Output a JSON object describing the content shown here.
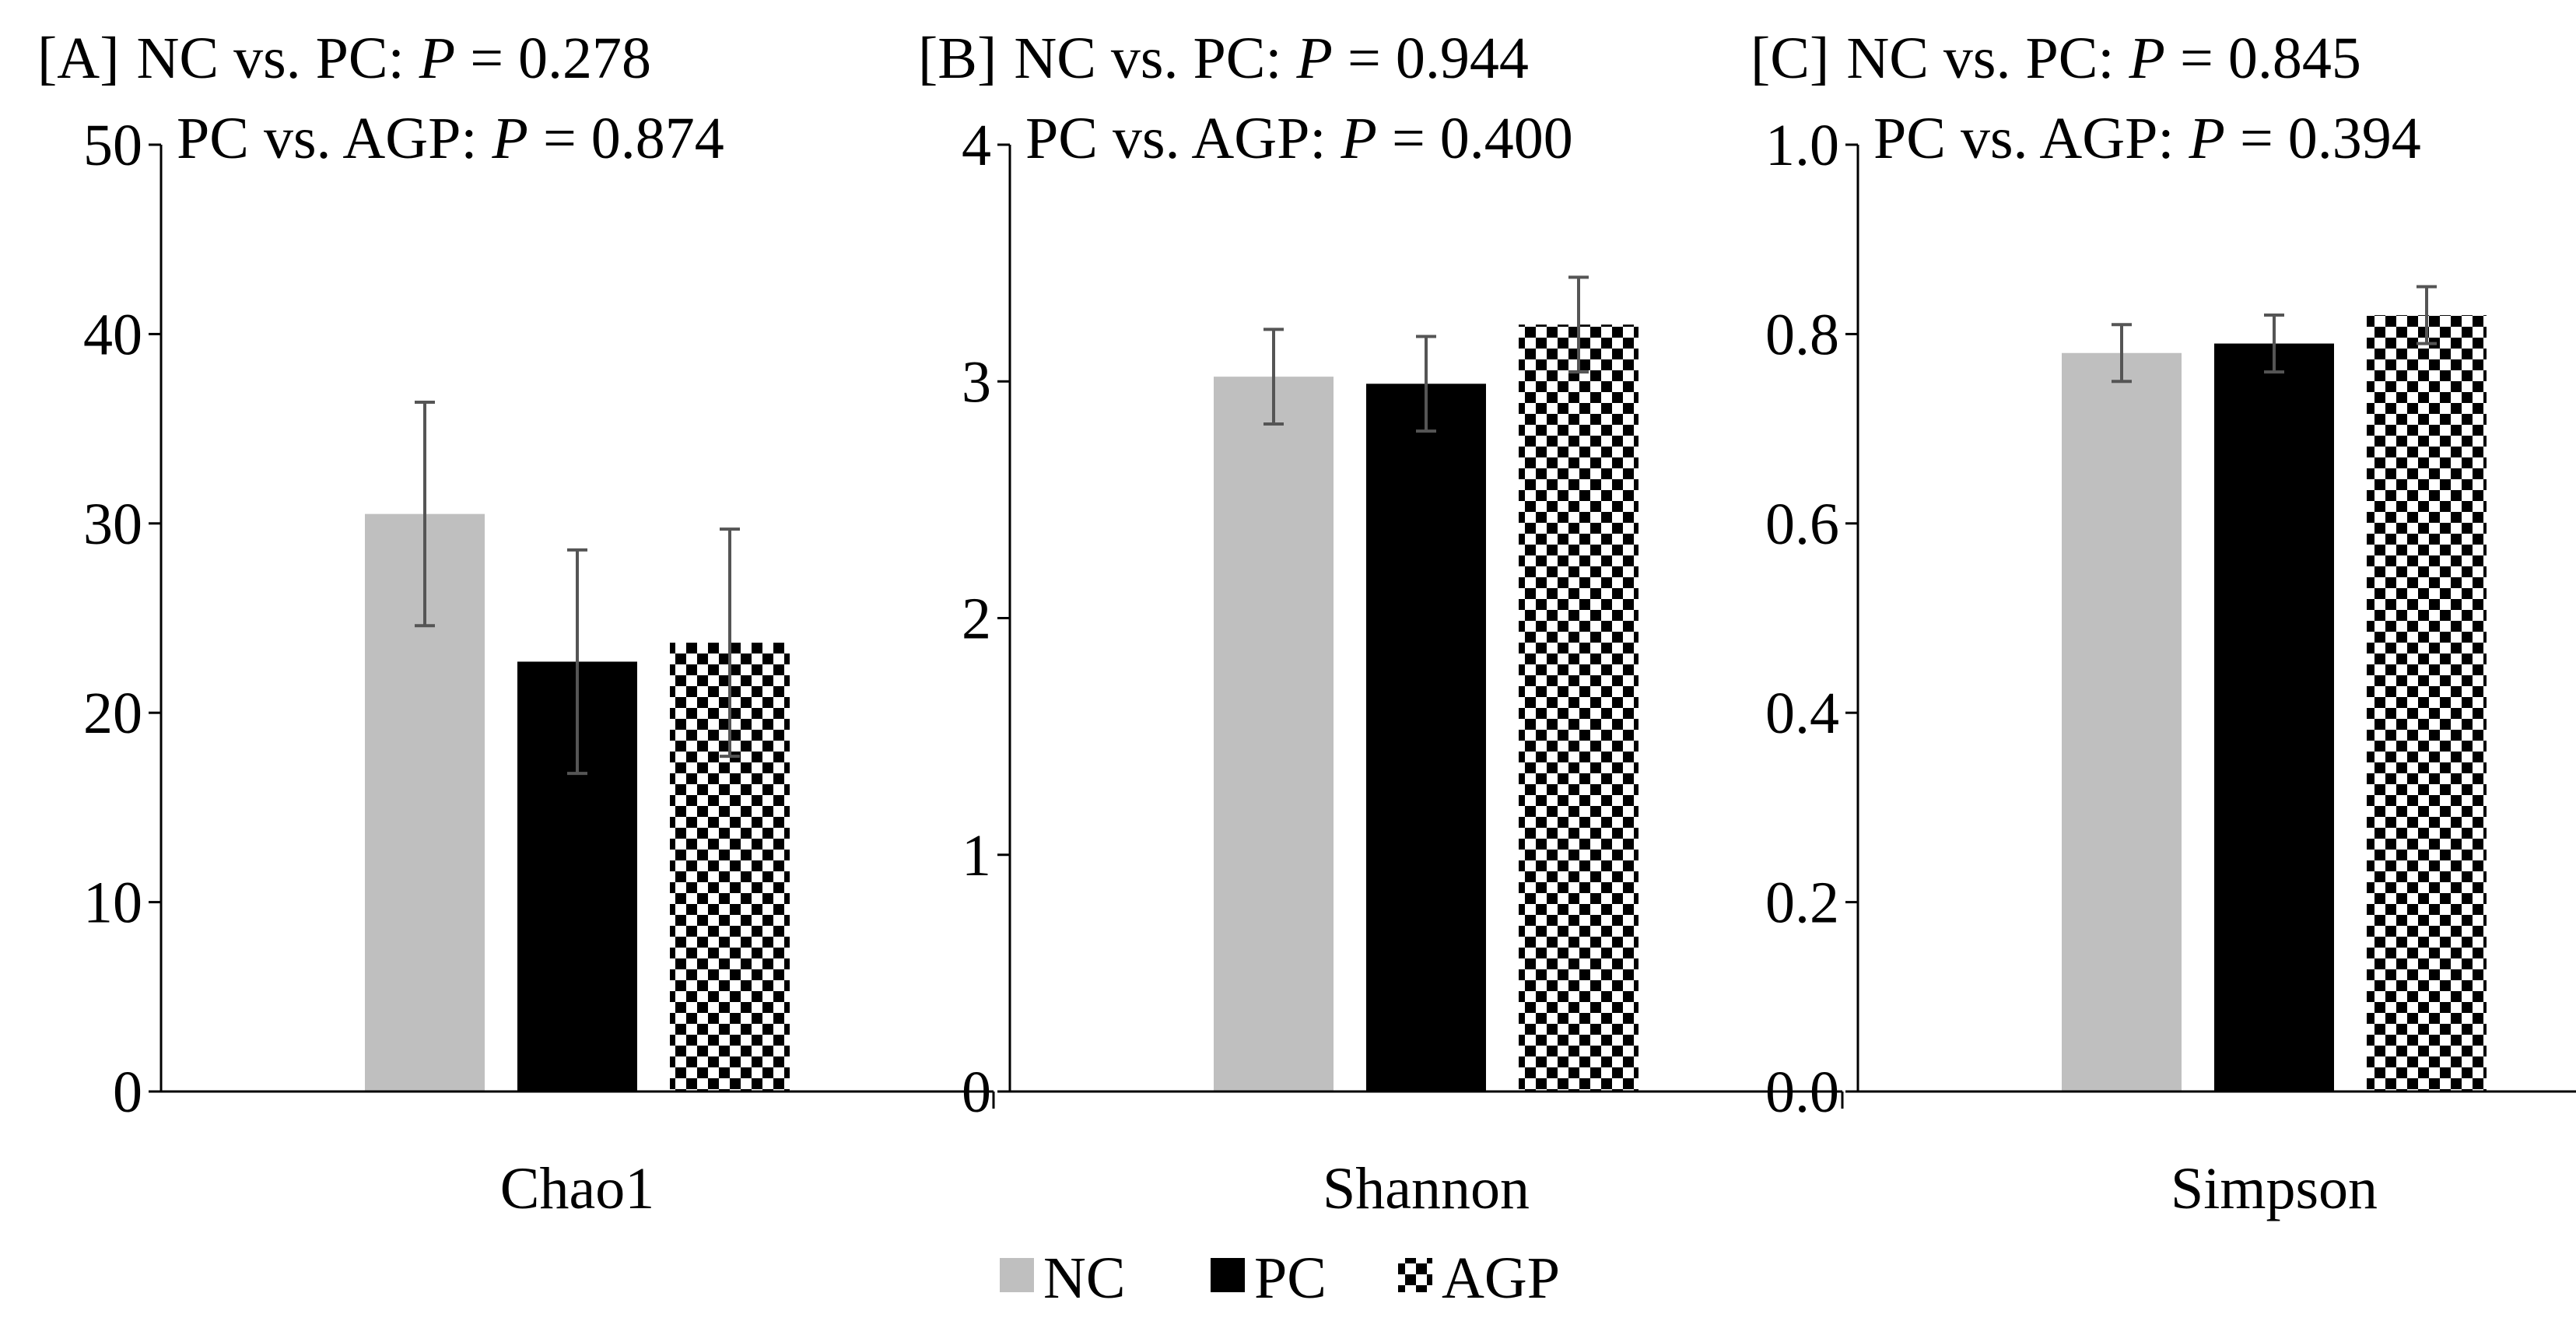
{
  "figure": {
    "legend": [
      {
        "name": "NC",
        "pattern": "solid",
        "color": "#bfbfbf"
      },
      {
        "name": "PC",
        "pattern": "solid",
        "color": "#000000"
      },
      {
        "name": "AGP",
        "pattern": "checker",
        "color": "#000000"
      }
    ]
  },
  "chart_data": [
    {
      "type": "bar",
      "panel_label": "[A]",
      "annotations": [
        {
          "comparison": "NC vs. PC: ",
          "p_symbol": "P",
          "p_text": " = 0.278"
        },
        {
          "comparison": "PC vs. AGP: ",
          "p_symbol": "P",
          "p_text": " = 0.874"
        }
      ],
      "categories": [
        "Chao1"
      ],
      "series": [
        {
          "name": "NC",
          "values": [
            30.5
          ],
          "error": [
            5.9
          ]
        },
        {
          "name": "PC",
          "values": [
            22.7
          ],
          "error": [
            5.9
          ]
        },
        {
          "name": "AGP",
          "values": [
            23.7
          ],
          "error": [
            6.0
          ]
        }
      ],
      "xlabel": "Chao1",
      "ylabel": "",
      "ylim": [
        0,
        50
      ],
      "yticks": [
        0,
        10,
        20,
        30,
        40,
        50
      ],
      "ytick_labels": [
        "0",
        "10",
        "20",
        "30",
        "40",
        "50"
      ]
    },
    {
      "type": "bar",
      "panel_label": "[B]",
      "annotations": [
        {
          "comparison": "NC vs. PC: ",
          "p_symbol": "P",
          "p_text": " = 0.944"
        },
        {
          "comparison": "PC vs. AGP: ",
          "p_symbol": "P",
          "p_text": " = 0.400"
        }
      ],
      "categories": [
        "Shannon"
      ],
      "series": [
        {
          "name": "NC",
          "values": [
            3.02
          ],
          "error": [
            0.2
          ]
        },
        {
          "name": "PC",
          "values": [
            2.99
          ],
          "error": [
            0.2
          ]
        },
        {
          "name": "AGP",
          "values": [
            3.24
          ],
          "error": [
            0.2
          ]
        }
      ],
      "xlabel": "Shannon",
      "ylabel": "",
      "ylim": [
        0,
        4
      ],
      "yticks": [
        0,
        1,
        2,
        3,
        4
      ],
      "ytick_labels": [
        "0",
        "1",
        "2",
        "3",
        "4"
      ]
    },
    {
      "type": "bar",
      "panel_label": "[C]",
      "annotations": [
        {
          "comparison": "NC vs. PC: ",
          "p_symbol": "P",
          "p_text": " = 0.845"
        },
        {
          "comparison": "PC vs. AGP: ",
          "p_symbol": "P",
          "p_text": " = 0.394"
        }
      ],
      "categories": [
        "Simpson"
      ],
      "series": [
        {
          "name": "NC",
          "values": [
            0.78
          ],
          "error": [
            0.03
          ]
        },
        {
          "name": "PC",
          "values": [
            0.79
          ],
          "error": [
            0.03
          ]
        },
        {
          "name": "AGP",
          "values": [
            0.82
          ],
          "error": [
            0.03
          ]
        }
      ],
      "xlabel": "Simpson",
      "ylabel": "",
      "ylim": [
        0,
        1.0
      ],
      "yticks": [
        0,
        0.2,
        0.4,
        0.6,
        0.8,
        1.0
      ],
      "ytick_labels": [
        "0.0",
        "0.2",
        "0.4",
        "0.6",
        "0.8",
        "1.0"
      ]
    }
  ]
}
